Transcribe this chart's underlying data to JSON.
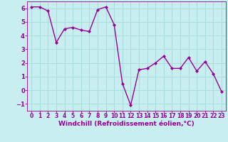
{
  "x": [
    0,
    1,
    2,
    3,
    4,
    5,
    6,
    7,
    8,
    9,
    10,
    11,
    12,
    13,
    14,
    15,
    16,
    17,
    18,
    19,
    20,
    21,
    22,
    23
  ],
  "y": [
    6.1,
    6.1,
    5.8,
    3.5,
    4.5,
    4.6,
    4.4,
    4.3,
    5.9,
    6.1,
    4.8,
    0.5,
    -1.1,
    1.5,
    1.6,
    2.0,
    2.5,
    1.6,
    1.6,
    2.4,
    1.4,
    2.1,
    1.2,
    -0.1
  ],
  "line_color": "#990099",
  "marker": "D",
  "marker_size": 2,
  "bg_color": "#c8eef0",
  "grid_color": "#aadddd",
  "xlabel": "Windchill (Refroidissement éolien,°C)",
  "xlabel_color": "#990099",
  "tick_color": "#990099",
  "ylim": [
    -1.5,
    6.5
  ],
  "xlim": [
    -0.5,
    23.5
  ],
  "yticks": [
    -1,
    0,
    1,
    2,
    3,
    4,
    5,
    6
  ],
  "xticks": [
    0,
    1,
    2,
    3,
    4,
    5,
    6,
    7,
    8,
    9,
    10,
    11,
    12,
    13,
    14,
    15,
    16,
    17,
    18,
    19,
    20,
    21,
    22,
    23
  ],
  "xlabel_fontsize": 6.5,
  "tick_fontsize_x": 5.5,
  "tick_fontsize_y": 6.0
}
